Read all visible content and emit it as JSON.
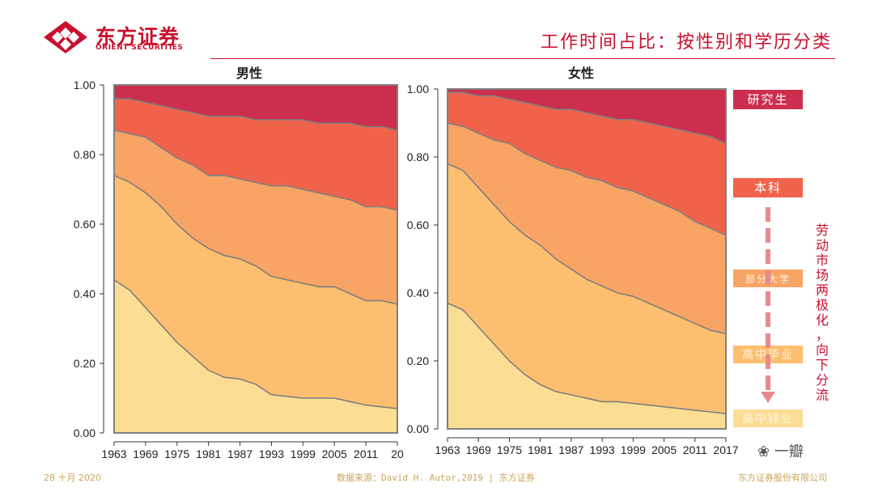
{
  "header": {
    "logo_name": "东方证券",
    "logo_sub": "ORIENT SECURITIES",
    "title": "工作时间占比：按性别和学历分类"
  },
  "footer": {
    "date": "28 十月 2020",
    "source": "数据来源：David H. Autor,2019 | 东方证券",
    "company": "东方证券股份有限公司"
  },
  "watermark": {
    "icon": "wechat-icon",
    "text": "一瓣"
  },
  "annotation": {
    "text": "劳动市场两极化，向下分流",
    "arrow_color": "#e8898e"
  },
  "legend": [
    {
      "label": "研究生",
      "color": "#cc2f4e"
    },
    {
      "label": "本科",
      "color": "#f0634a"
    },
    {
      "label": "部分大学",
      "color": "#f7a465"
    },
    {
      "label": "高中毕业",
      "color": "#fdbf6f"
    },
    {
      "label": "高中肄业",
      "color": "#fbdd93"
    }
  ],
  "chart_data": [
    {
      "type": "area",
      "stacked": true,
      "title": "男性",
      "x": [
        1963,
        1966,
        1969,
        1972,
        1975,
        1978,
        1981,
        1984,
        1987,
        1990,
        1993,
        1996,
        1999,
        2002,
        2005,
        2008,
        2011,
        2014,
        2017
      ],
      "xticks": [
        "1963",
        "1969",
        "1975",
        "1981",
        "1987",
        "1993",
        "1999",
        "2005",
        "2011",
        "20"
      ],
      "yticks": [
        "0.00",
        "0.20",
        "0.40",
        "0.60",
        "0.80",
        "1.00"
      ],
      "ylim": [
        0,
        1
      ],
      "boundaries": [
        [
          0.44,
          0.41,
          0.36,
          0.31,
          0.26,
          0.22,
          0.18,
          0.16,
          0.155,
          0.14,
          0.11,
          0.105,
          0.1,
          0.1,
          0.1,
          0.09,
          0.08,
          0.075,
          0.07
        ],
        [
          0.74,
          0.72,
          0.69,
          0.65,
          0.6,
          0.56,
          0.53,
          0.51,
          0.5,
          0.48,
          0.45,
          0.44,
          0.43,
          0.42,
          0.42,
          0.4,
          0.38,
          0.38,
          0.37
        ],
        [
          0.87,
          0.86,
          0.85,
          0.82,
          0.79,
          0.77,
          0.74,
          0.74,
          0.73,
          0.72,
          0.71,
          0.71,
          0.7,
          0.69,
          0.68,
          0.67,
          0.65,
          0.65,
          0.64
        ],
        [
          0.96,
          0.96,
          0.95,
          0.94,
          0.93,
          0.92,
          0.91,
          0.91,
          0.91,
          0.9,
          0.9,
          0.9,
          0.9,
          0.89,
          0.89,
          0.89,
          0.88,
          0.88,
          0.87
        ]
      ]
    },
    {
      "type": "area",
      "stacked": true,
      "title": "女性",
      "x": [
        1963,
        1966,
        1969,
        1972,
        1975,
        1978,
        1981,
        1984,
        1987,
        1990,
        1993,
        1996,
        1999,
        2002,
        2005,
        2008,
        2011,
        2014,
        2017
      ],
      "xticks": [
        "1963",
        "1969",
        "1975",
        "1981",
        "1987",
        "1993",
        "1999",
        "2005",
        "2011",
        "2017"
      ],
      "yticks": [
        "0.00",
        "0.20",
        "0.40",
        "0.60",
        "0.80",
        "1.00"
      ],
      "ylim": [
        0,
        1
      ],
      "boundaries": [
        [
          0.37,
          0.35,
          0.3,
          0.25,
          0.2,
          0.16,
          0.13,
          0.11,
          0.1,
          0.09,
          0.08,
          0.08,
          0.075,
          0.07,
          0.065,
          0.06,
          0.055,
          0.05,
          0.045
        ],
        [
          0.78,
          0.76,
          0.71,
          0.66,
          0.61,
          0.57,
          0.54,
          0.5,
          0.47,
          0.44,
          0.42,
          0.4,
          0.39,
          0.37,
          0.35,
          0.33,
          0.31,
          0.29,
          0.28
        ],
        [
          0.9,
          0.89,
          0.87,
          0.85,
          0.84,
          0.81,
          0.79,
          0.77,
          0.76,
          0.74,
          0.73,
          0.71,
          0.7,
          0.68,
          0.66,
          0.64,
          0.61,
          0.59,
          0.57
        ],
        [
          0.99,
          0.99,
          0.98,
          0.98,
          0.97,
          0.96,
          0.95,
          0.94,
          0.94,
          0.93,
          0.92,
          0.91,
          0.91,
          0.9,
          0.89,
          0.88,
          0.87,
          0.86,
          0.84
        ]
      ]
    }
  ]
}
